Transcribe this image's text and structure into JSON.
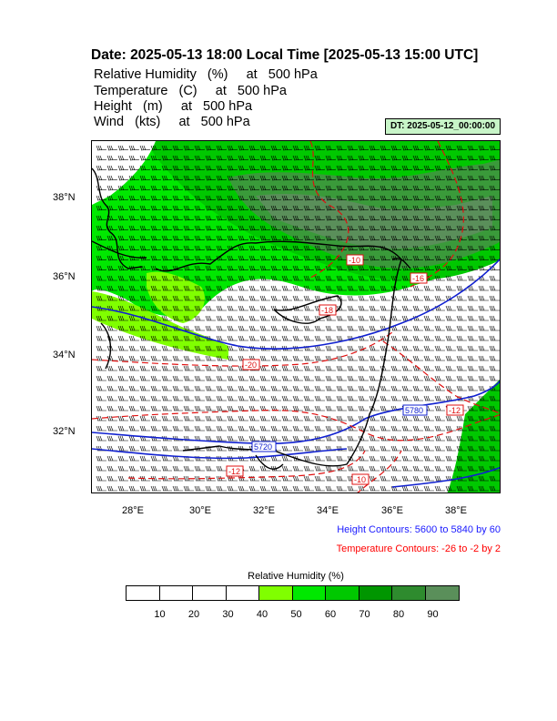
{
  "header": {
    "title": "Date: 2025-05-13  18:00 Local Time [2025-05-13  15:00 UTC]",
    "variables": [
      "Relative Humidity   (%)     at   500 hPa",
      "Temperature   (C)     at   500 hPa",
      "Height   (m)     at   500 hPa",
      "Wind   (kts)     at   500 hPa"
    ],
    "dt_label": "DT: 2025-05-12_00:00:00"
  },
  "map": {
    "x_ticks": [
      "28°E",
      "30°E",
      "32°E",
      "34°E",
      "36°E",
      "38°E"
    ],
    "y_ticks": [
      "38°N",
      "36°N",
      "34°N",
      "32°N"
    ],
    "height_contour_labels": [
      "5720",
      "5780",
      "5720"
    ],
    "temp_contour_labels": [
      "-20",
      "-18",
      "-16",
      "-12",
      "-12",
      "-10",
      "-10"
    ],
    "colors": {
      "height_contour": "#1020d0",
      "temp_contour": "#e01010",
      "coast": "#000000"
    }
  },
  "notes": {
    "height": "Height Contours: 5600 to 5840 by 60",
    "temperature": "Temperature Contours: -26 to -2 by 2",
    "height_color": "#1a1aff",
    "temperature_color": "#ff0000"
  },
  "colorbar": {
    "title": "Relative Humidity  (%)",
    "labels": [
      "10",
      "20",
      "30",
      "40",
      "50",
      "60",
      "70",
      "80",
      "90"
    ],
    "colors": [
      "#ffffff",
      "#ffffff",
      "#ffffff",
      "#ffffff",
      "#80ff00",
      "#00e800",
      "#00c800",
      "#009600",
      "#2e8b2e",
      "#5a8f5a"
    ]
  }
}
